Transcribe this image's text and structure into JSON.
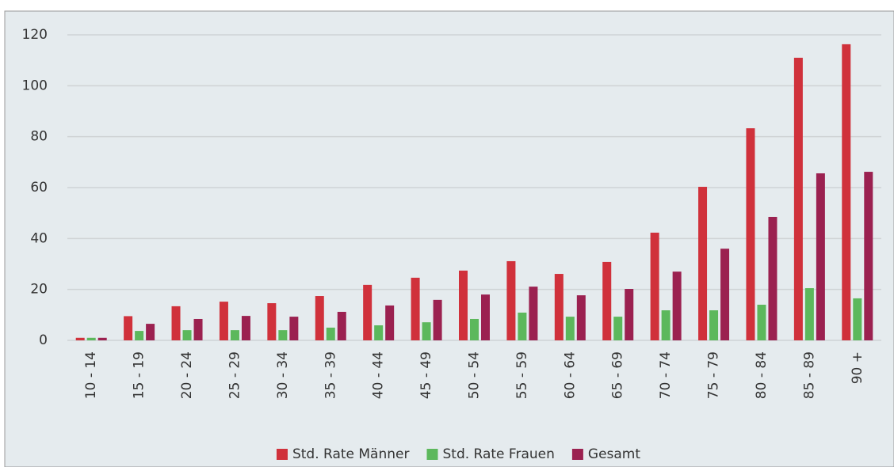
{
  "chart_data": {
    "type": "bar",
    "categories": [
      "10 - 14",
      "15 - 19",
      "20 - 24",
      "25 - 29",
      "30 - 34",
      "35 - 39",
      "40 - 44",
      "45 - 49",
      "50 - 54",
      "55 - 59",
      "60 - 64",
      "65 - 69",
      "70 - 74",
      "75 - 79",
      "80 - 84",
      "85 - 89",
      "90 +"
    ],
    "series": [
      {
        "name": "Std. Rate Männer",
        "color": "#d0313b",
        "values": [
          1,
          9.5,
          13.4,
          15.2,
          14.6,
          17.4,
          21.8,
          24.6,
          27.4,
          31.1,
          26.1,
          30.8,
          42.3,
          60.3,
          83.3,
          111,
          116.3
        ]
      },
      {
        "name": "Std. Rate Frauen",
        "color": "#5cb85c",
        "values": [
          1,
          3.7,
          4,
          4,
          4,
          5,
          5.9,
          7.1,
          8.4,
          10.9,
          9.3,
          9.3,
          11.8,
          11.8,
          14,
          20.5,
          16.5
        ]
      },
      {
        "name": "Gesamt",
        "color": "#9b2150",
        "values": [
          1,
          6.5,
          8.4,
          9.6,
          9.3,
          11.2,
          13.7,
          15.9,
          18,
          21.1,
          17.7,
          20.2,
          27,
          36,
          48.5,
          65.6,
          66.2
        ]
      }
    ],
    "ylim": [
      0,
      120
    ],
    "yticks": [
      0,
      20,
      40,
      60,
      80,
      100,
      120
    ],
    "grid": true,
    "legend": "bottom"
  }
}
